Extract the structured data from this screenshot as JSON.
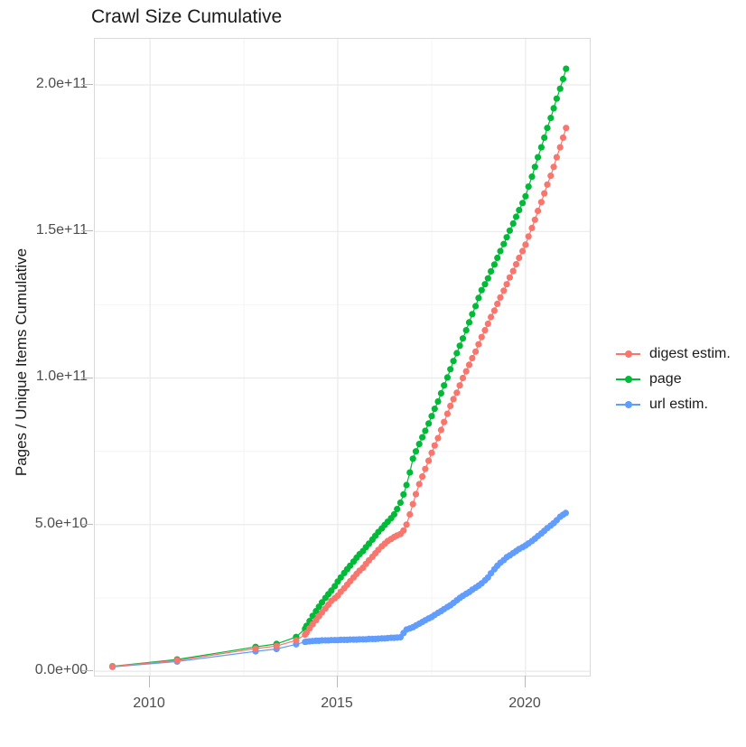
{
  "title": "Crawl Size Cumulative",
  "y_axis_title": "Pages / Unique Items Cumulative",
  "legend": {
    "items": [
      {
        "label": "digest estim.",
        "color": "#F8766D"
      },
      {
        "label": "page",
        "color": "#00BA38"
      },
      {
        "label": "url estim.",
        "color": "#619CFF"
      }
    ]
  },
  "chart_data": {
    "type": "scatter",
    "title": "Crawl Size Cumulative",
    "xlabel": "",
    "ylabel": "Pages / Unique Items Cumulative",
    "value_unit": "items, values stored in billions (1e9)",
    "grid": true,
    "legend_position": "right",
    "x_range": [
      2008.53,
      2021.71
    ],
    "y_range": [
      -1.5,
      215.7
    ],
    "x_ticks": {
      "values": [
        2010,
        2015,
        2020
      ],
      "labels": [
        "2010",
        "2015",
        "2020"
      ]
    },
    "x_minor": [
      2012.5,
      2017.5
    ],
    "y_ticks": {
      "values": [
        0,
        50,
        100,
        150,
        200
      ],
      "labels": [
        "0.0e+00",
        "5.0e+10",
        "1.0e+11",
        "1.5e+11",
        "2.0e+11"
      ]
    },
    "y_minor": [
      25,
      75,
      125,
      175
    ],
    "point_radius": 3.6,
    "draw_order": [
      1,
      2,
      0
    ],
    "series": [
      {
        "name": "digest estim.",
        "color": "#F8766D",
        "points": [
          [
            2009.0,
            1.6
          ],
          [
            2010.72,
            3.7
          ],
          [
            2012.81,
            7.7
          ],
          [
            2013.37,
            8.6
          ],
          [
            2013.89,
            10.5
          ],
          [
            2014.13,
            12.5
          ],
          [
            2014.17,
            13.2
          ],
          [
            2014.25,
            14.6
          ],
          [
            2014.33,
            16.0
          ],
          [
            2014.42,
            17.4
          ],
          [
            2014.5,
            18.8
          ],
          [
            2014.58,
            20.1
          ],
          [
            2014.67,
            21.4
          ],
          [
            2014.75,
            22.7
          ],
          [
            2014.83,
            24.0
          ],
          [
            2014.92,
            24.9
          ],
          [
            2015.0,
            25.8
          ],
          [
            2015.08,
            27.1
          ],
          [
            2015.17,
            28.3
          ],
          [
            2015.25,
            29.5
          ],
          [
            2015.33,
            30.7
          ],
          [
            2015.42,
            32.0
          ],
          [
            2015.5,
            33.2
          ],
          [
            2015.58,
            34.3
          ],
          [
            2015.67,
            35.3
          ],
          [
            2015.75,
            36.6
          ],
          [
            2015.83,
            37.8
          ],
          [
            2015.92,
            39.0
          ],
          [
            2016.0,
            40.2
          ],
          [
            2016.08,
            41.4
          ],
          [
            2016.17,
            42.6
          ],
          [
            2016.25,
            43.5
          ],
          [
            2016.33,
            44.4
          ],
          [
            2016.42,
            45.1
          ],
          [
            2016.5,
            45.8
          ],
          [
            2016.58,
            46.3
          ],
          [
            2016.67,
            46.8
          ],
          [
            2016.75,
            48.0
          ],
          [
            2016.83,
            50.0
          ],
          [
            2016.92,
            53.5
          ],
          [
            2017.0,
            57.0
          ],
          [
            2017.08,
            60.4
          ],
          [
            2017.17,
            63.8
          ],
          [
            2017.25,
            66.4
          ],
          [
            2017.33,
            69.0
          ],
          [
            2017.42,
            71.8
          ],
          [
            2017.5,
            74.5
          ],
          [
            2017.58,
            77.0
          ],
          [
            2017.67,
            79.5
          ],
          [
            2017.75,
            82.3
          ],
          [
            2017.83,
            85.0
          ],
          [
            2017.92,
            87.8
          ],
          [
            2018.0,
            90.5
          ],
          [
            2018.08,
            92.8
          ],
          [
            2018.17,
            95.0
          ],
          [
            2018.25,
            97.5
          ],
          [
            2018.33,
            100.0
          ],
          [
            2018.42,
            102.3
          ],
          [
            2018.5,
            104.5
          ],
          [
            2018.58,
            106.8
          ],
          [
            2018.67,
            109.0
          ],
          [
            2018.75,
            111.5
          ],
          [
            2018.83,
            114.0
          ],
          [
            2018.92,
            116.3
          ],
          [
            2019.0,
            118.5
          ],
          [
            2019.08,
            120.8
          ],
          [
            2019.17,
            123.0
          ],
          [
            2019.25,
            125.3
          ],
          [
            2019.33,
            127.5
          ],
          [
            2019.42,
            129.8
          ],
          [
            2019.5,
            132.0
          ],
          [
            2019.58,
            134.3
          ],
          [
            2019.67,
            136.5
          ],
          [
            2019.75,
            138.8
          ],
          [
            2019.83,
            141.0
          ],
          [
            2019.92,
            143.3
          ],
          [
            2020.0,
            145.5
          ],
          [
            2020.08,
            148.3
          ],
          [
            2020.17,
            151.2
          ],
          [
            2020.25,
            154.0
          ],
          [
            2020.33,
            157.0
          ],
          [
            2020.42,
            160.0
          ],
          [
            2020.5,
            163.0
          ],
          [
            2020.58,
            166.0
          ],
          [
            2020.67,
            169.0
          ],
          [
            2020.75,
            172.0
          ],
          [
            2020.83,
            175.3
          ],
          [
            2020.92,
            178.7
          ],
          [
            2021.0,
            182.0
          ],
          [
            2021.08,
            185.3
          ]
        ]
      },
      {
        "name": "page",
        "color": "#00BA38",
        "points": [
          [
            2009.0,
            1.7
          ],
          [
            2010.72,
            4.0
          ],
          [
            2012.81,
            8.3
          ],
          [
            2013.37,
            9.3
          ],
          [
            2013.89,
            11.7
          ],
          [
            2014.13,
            14.5
          ],
          [
            2014.17,
            15.5
          ],
          [
            2014.25,
            17.1
          ],
          [
            2014.33,
            18.9
          ],
          [
            2014.42,
            20.5
          ],
          [
            2014.5,
            22.0
          ],
          [
            2014.58,
            23.5
          ],
          [
            2014.67,
            25.0
          ],
          [
            2014.75,
            26.3
          ],
          [
            2014.83,
            27.5
          ],
          [
            2014.92,
            29.0
          ],
          [
            2015.0,
            30.6
          ],
          [
            2015.08,
            32.0
          ],
          [
            2015.17,
            33.5
          ],
          [
            2015.25,
            34.8
          ],
          [
            2015.33,
            36.0
          ],
          [
            2015.42,
            37.4
          ],
          [
            2015.5,
            38.7
          ],
          [
            2015.58,
            39.9
          ],
          [
            2015.67,
            41.0
          ],
          [
            2015.75,
            42.3
          ],
          [
            2015.83,
            43.5
          ],
          [
            2015.92,
            44.9
          ],
          [
            2016.0,
            46.2
          ],
          [
            2016.08,
            47.5
          ],
          [
            2016.17,
            48.7
          ],
          [
            2016.25,
            49.9
          ],
          [
            2016.33,
            51.0
          ],
          [
            2016.42,
            52.2
          ],
          [
            2016.5,
            53.5
          ],
          [
            2016.58,
            55.3
          ],
          [
            2016.67,
            57.5
          ],
          [
            2016.75,
            60.3
          ],
          [
            2016.83,
            63.5
          ],
          [
            2016.92,
            67.8
          ],
          [
            2017.0,
            72.5
          ],
          [
            2017.08,
            75.0
          ],
          [
            2017.17,
            77.5
          ],
          [
            2017.25,
            79.8
          ],
          [
            2017.33,
            82.0
          ],
          [
            2017.42,
            84.5
          ],
          [
            2017.5,
            87.0
          ],
          [
            2017.58,
            89.5
          ],
          [
            2017.67,
            92.0
          ],
          [
            2017.75,
            94.8
          ],
          [
            2017.83,
            97.5
          ],
          [
            2017.92,
            100.2
          ],
          [
            2018.0,
            103.0
          ],
          [
            2018.08,
            105.8
          ],
          [
            2018.17,
            108.5
          ],
          [
            2018.25,
            111.0
          ],
          [
            2018.33,
            113.5
          ],
          [
            2018.42,
            116.3
          ],
          [
            2018.5,
            119.0
          ],
          [
            2018.58,
            121.8
          ],
          [
            2018.67,
            124.5
          ],
          [
            2018.75,
            127.3
          ],
          [
            2018.83,
            130.0
          ],
          [
            2018.92,
            132.0
          ],
          [
            2019.0,
            134.0
          ],
          [
            2019.08,
            136.4
          ],
          [
            2019.17,
            138.7
          ],
          [
            2019.25,
            141.0
          ],
          [
            2019.33,
            143.3
          ],
          [
            2019.42,
            145.7
          ],
          [
            2019.5,
            148.0
          ],
          [
            2019.58,
            150.3
          ],
          [
            2019.67,
            152.7
          ],
          [
            2019.75,
            155.0
          ],
          [
            2019.83,
            157.3
          ],
          [
            2019.92,
            159.7
          ],
          [
            2020.0,
            162.0
          ],
          [
            2020.08,
            165.3
          ],
          [
            2020.17,
            168.7
          ],
          [
            2020.25,
            172.0
          ],
          [
            2020.33,
            175.3
          ],
          [
            2020.42,
            178.7
          ],
          [
            2020.5,
            182.0
          ],
          [
            2020.58,
            185.3
          ],
          [
            2020.67,
            188.7
          ],
          [
            2020.75,
            192.0
          ],
          [
            2020.83,
            195.3
          ],
          [
            2020.92,
            198.7
          ],
          [
            2021.0,
            202.0
          ],
          [
            2021.08,
            205.5
          ]
        ]
      },
      {
        "name": "url estim.",
        "color": "#619CFF",
        "points": [
          [
            2009.0,
            1.5
          ],
          [
            2010.72,
            3.3
          ],
          [
            2012.81,
            6.8
          ],
          [
            2013.37,
            7.6
          ],
          [
            2013.89,
            9.2
          ],
          [
            2014.13,
            10.0
          ],
          [
            2014.17,
            10.1
          ],
          [
            2014.25,
            10.2
          ],
          [
            2014.33,
            10.3
          ],
          [
            2014.42,
            10.4
          ],
          [
            2014.5,
            10.4
          ],
          [
            2014.58,
            10.5
          ],
          [
            2014.67,
            10.5
          ],
          [
            2014.75,
            10.5
          ],
          [
            2014.83,
            10.6
          ],
          [
            2014.92,
            10.6
          ],
          [
            2015.0,
            10.6
          ],
          [
            2015.08,
            10.7
          ],
          [
            2015.17,
            10.7
          ],
          [
            2015.25,
            10.7
          ],
          [
            2015.33,
            10.8
          ],
          [
            2015.42,
            10.8
          ],
          [
            2015.5,
            10.8
          ],
          [
            2015.58,
            10.9
          ],
          [
            2015.67,
            10.9
          ],
          [
            2015.75,
            10.9
          ],
          [
            2015.83,
            11.0
          ],
          [
            2015.92,
            11.0
          ],
          [
            2016.0,
            11.0
          ],
          [
            2016.08,
            11.1
          ],
          [
            2016.17,
            11.2
          ],
          [
            2016.25,
            11.2
          ],
          [
            2016.33,
            11.3
          ],
          [
            2016.42,
            11.4
          ],
          [
            2016.5,
            11.4
          ],
          [
            2016.58,
            11.5
          ],
          [
            2016.67,
            11.6
          ],
          [
            2016.75,
            13.0
          ],
          [
            2016.83,
            14.2
          ],
          [
            2016.92,
            14.6
          ],
          [
            2017.0,
            15.0
          ],
          [
            2017.08,
            15.6
          ],
          [
            2017.17,
            16.2
          ],
          [
            2017.25,
            16.8
          ],
          [
            2017.33,
            17.4
          ],
          [
            2017.42,
            18.0
          ],
          [
            2017.5,
            18.5
          ],
          [
            2017.58,
            19.2
          ],
          [
            2017.67,
            19.9
          ],
          [
            2017.75,
            20.5
          ],
          [
            2017.83,
            21.2
          ],
          [
            2017.92,
            21.9
          ],
          [
            2018.0,
            22.5
          ],
          [
            2018.08,
            23.3
          ],
          [
            2018.17,
            24.2
          ],
          [
            2018.25,
            25.0
          ],
          [
            2018.33,
            25.7
          ],
          [
            2018.42,
            26.4
          ],
          [
            2018.5,
            27.0
          ],
          [
            2018.58,
            27.8
          ],
          [
            2018.67,
            28.5
          ],
          [
            2018.75,
            29.2
          ],
          [
            2018.83,
            30.0
          ],
          [
            2018.92,
            31.0
          ],
          [
            2019.0,
            32.0
          ],
          [
            2019.08,
            33.4
          ],
          [
            2019.17,
            34.8
          ],
          [
            2019.25,
            36.0
          ],
          [
            2019.33,
            37.0
          ],
          [
            2019.42,
            37.9
          ],
          [
            2019.5,
            38.9
          ],
          [
            2019.58,
            39.5
          ],
          [
            2019.67,
            40.3
          ],
          [
            2019.75,
            41.0
          ],
          [
            2019.83,
            41.7
          ],
          [
            2019.92,
            42.3
          ],
          [
            2020.0,
            42.9
          ],
          [
            2020.08,
            43.6
          ],
          [
            2020.17,
            44.4
          ],
          [
            2020.25,
            45.2
          ],
          [
            2020.33,
            46.1
          ],
          [
            2020.42,
            47.0
          ],
          [
            2020.5,
            47.9
          ],
          [
            2020.58,
            48.8
          ],
          [
            2020.67,
            49.7
          ],
          [
            2020.75,
            50.5
          ],
          [
            2020.83,
            51.5
          ],
          [
            2020.92,
            52.7
          ],
          [
            2021.0,
            53.4
          ],
          [
            2021.07,
            54.0
          ]
        ]
      }
    ]
  }
}
